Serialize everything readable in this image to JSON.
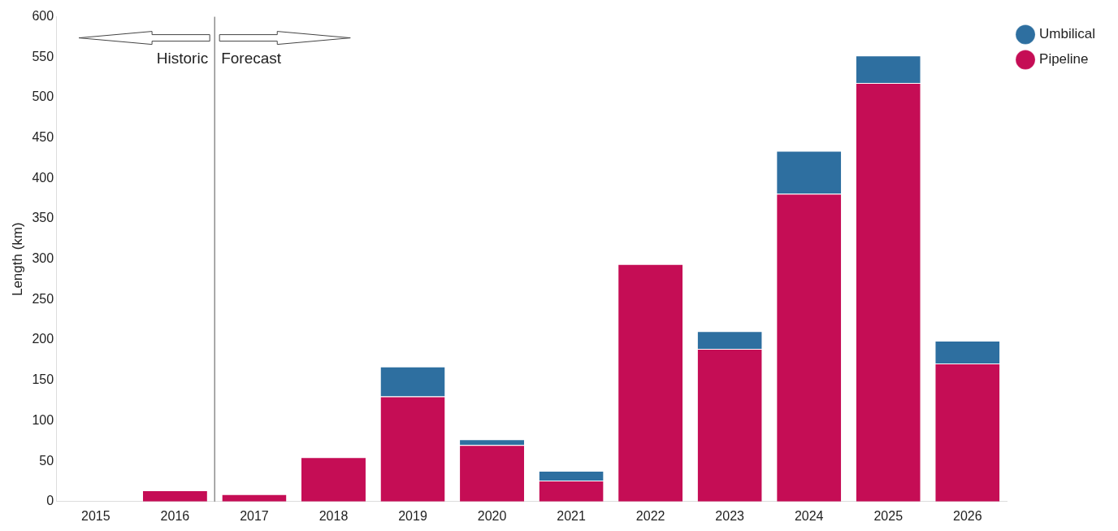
{
  "chart_data": {
    "type": "bar",
    "ylabel": "Length (km)",
    "x": [
      2015,
      2016,
      2017,
      2018,
      2019,
      2020,
      2021,
      2022,
      2023,
      2024,
      2025,
      2026
    ],
    "xlim": [
      2014.5,
      2026.5
    ],
    "xticks": [
      2015,
      2016,
      2017,
      2018,
      2019,
      2020,
      2021,
      2022,
      2023,
      2024,
      2025,
      2026
    ],
    "ylim": [
      0,
      600
    ],
    "yticks": [
      0,
      50,
      100,
      150,
      200,
      250,
      300,
      350,
      400,
      450,
      500,
      550,
      600
    ],
    "stacked": true,
    "legend": "top right",
    "grid": false,
    "series": [
      {
        "name": "Pipeline",
        "color": "#c50d55",
        "values": [
          0,
          14,
          9,
          55,
          130,
          70,
          26,
          294,
          189,
          381,
          518,
          171
        ]
      },
      {
        "name": "Umbilical",
        "color": "#2e6fa0",
        "values": [
          0,
          0,
          0,
          0,
          37,
          7,
          12,
          0,
          22,
          53,
          34,
          28
        ]
      }
    ],
    "ref_lines": [
      {
        "axis": "x",
        "value": 2016.5,
        "color": "#555555"
      }
    ],
    "annotations": [
      "Historic",
      "Forecast"
    ]
  }
}
